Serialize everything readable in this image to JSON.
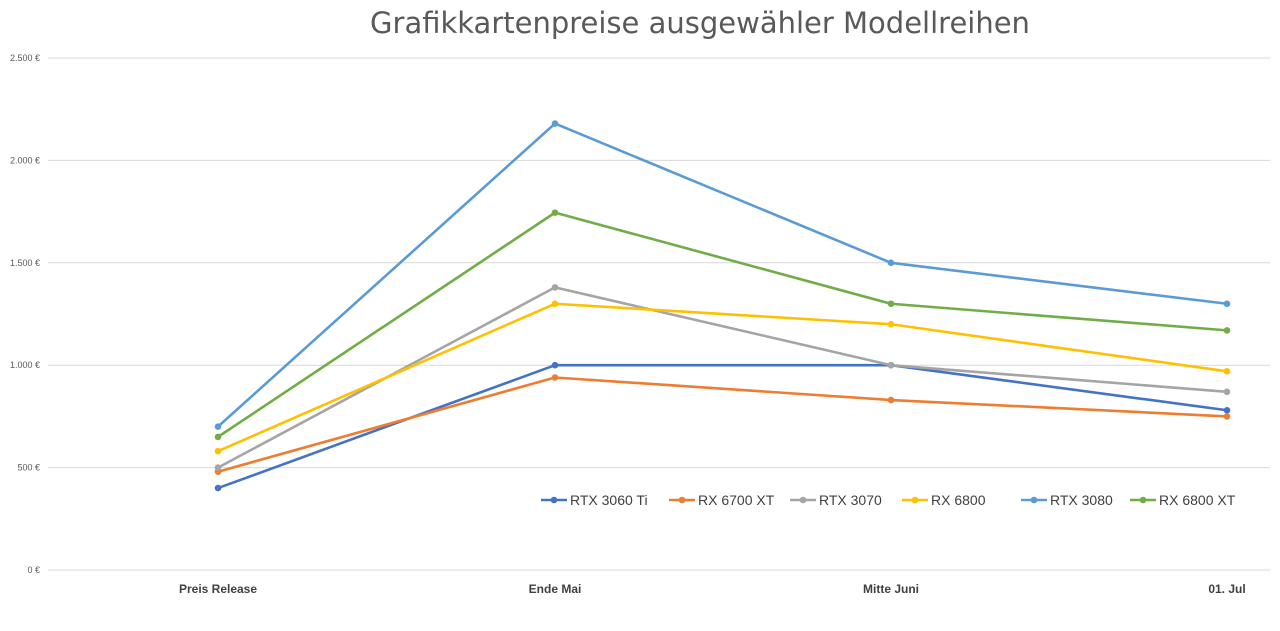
{
  "chart_data": {
    "type": "line",
    "title": "Grafikkartenpreise ausgewähler Modellreihen",
    "categories": [
      "Preis Release",
      "Ende Mai",
      "Mitte Juni",
      "01. Jul"
    ],
    "y_ticks": [
      0,
      500,
      1000,
      1500,
      2000,
      2500
    ],
    "y_tick_labels": [
      "0 €",
      "500 €",
      "1.000 €",
      "1.500 €",
      "2.000 €",
      "2.500 €"
    ],
    "ylim": [
      0,
      2500
    ],
    "grid": true,
    "legend_position": "bottom-right",
    "series": [
      {
        "name": "RTX 3060 Ti",
        "color": "#4472C4",
        "values": [
          400,
          1000,
          1000,
          780
        ]
      },
      {
        "name": "RX 6700 XT",
        "color": "#ED7D31",
        "values": [
          480,
          940,
          830,
          750
        ]
      },
      {
        "name": "RTX 3070",
        "color": "#A5A5A5",
        "values": [
          500,
          1380,
          1000,
          870
        ]
      },
      {
        "name": "RX 6800",
        "color": "#FFC000",
        "values": [
          580,
          1300,
          1200,
          970
        ]
      },
      {
        "name": "RTX 3080",
        "color": "#5B9BD5",
        "values": [
          700,
          2180,
          1500,
          1300
        ]
      },
      {
        "name": "RX 6800 XT",
        "color": "#70AD47",
        "values": [
          650,
          1745,
          1300,
          1170
        ]
      }
    ]
  }
}
